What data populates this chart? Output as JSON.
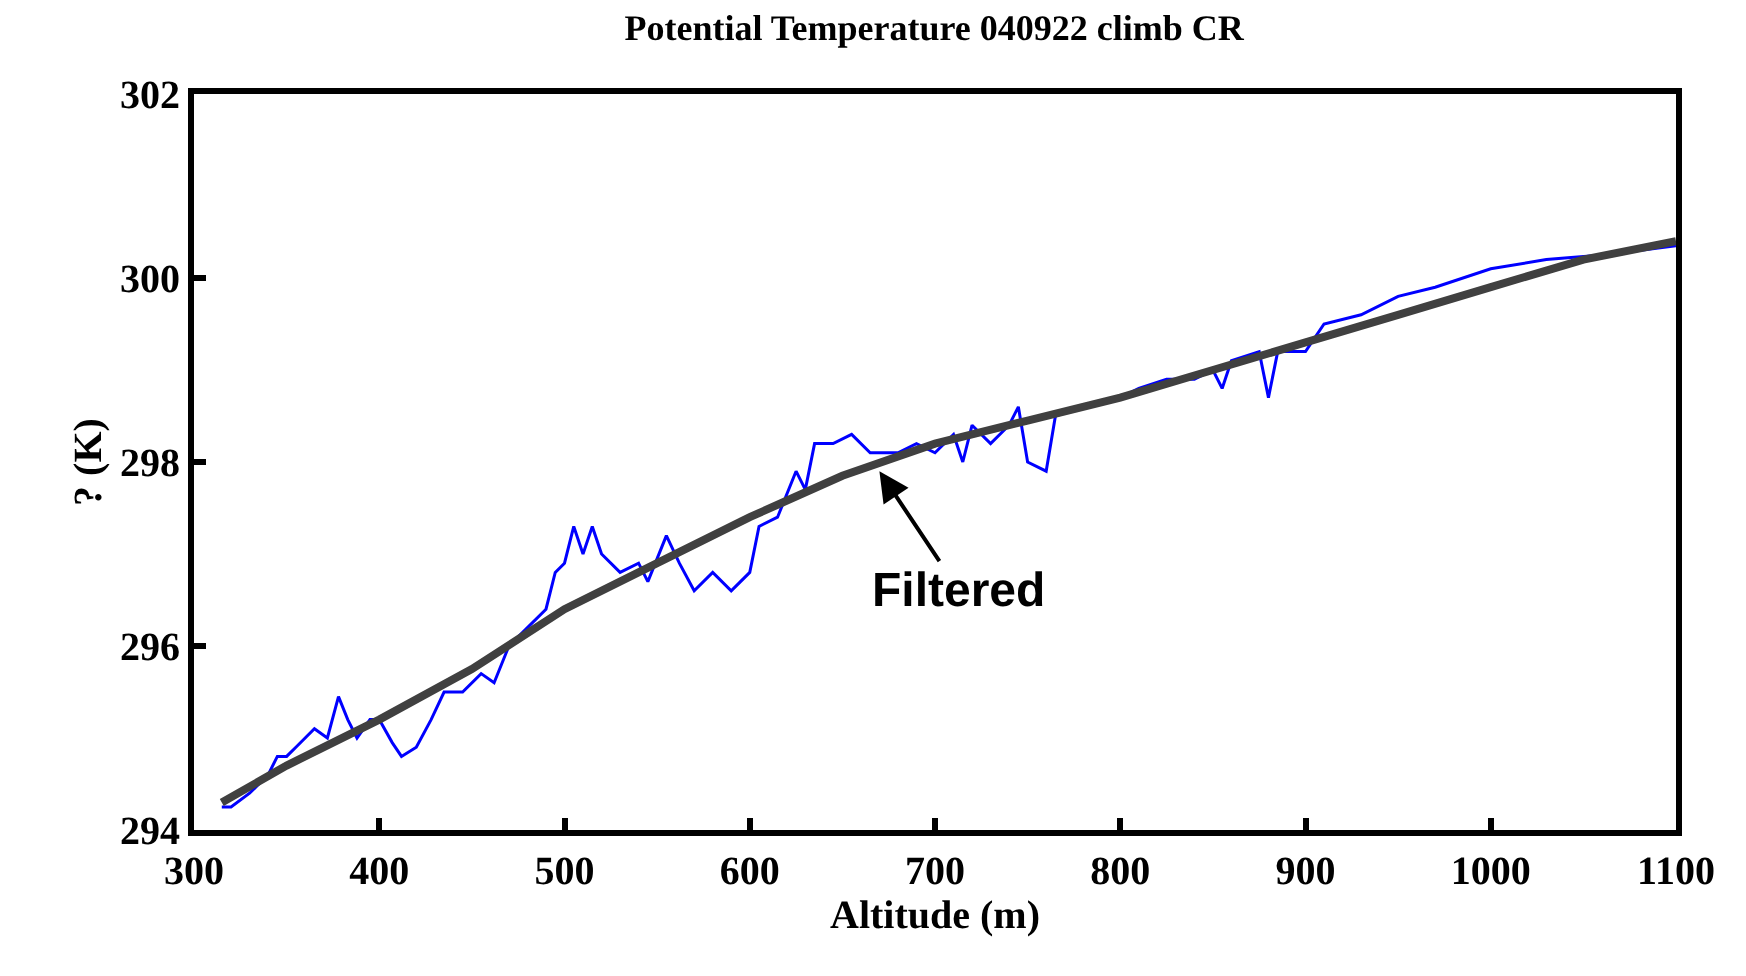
{
  "chart_data": {
    "type": "line",
    "title": "Potential Temperature 040922 climb CR",
    "xlabel": "Altitude (m)",
    "ylabel": "? (K)",
    "xlim": [
      300,
      1100
    ],
    "xticks": [
      300,
      400,
      500,
      600,
      700,
      800,
      900,
      1000,
      1100
    ],
    "ylim": [
      294,
      302
    ],
    "yticks": [
      294,
      296,
      298,
      300,
      302
    ],
    "marker": "none",
    "line_style": "solid",
    "series": [
      {
        "color": "#0000ff",
        "x": [
          315,
          320,
          330,
          340,
          345,
          350,
          355,
          360,
          365,
          372,
          378,
          383,
          388,
          395,
          400,
          407,
          412,
          420,
          428,
          435,
          445,
          455,
          462,
          470,
          480,
          490,
          495,
          500,
          505,
          510,
          515,
          520,
          530,
          540,
          545,
          555,
          562,
          570,
          580,
          590,
          600,
          605,
          615,
          625,
          630,
          635,
          645,
          655,
          665,
          680,
          690,
          700,
          710,
          715,
          720,
          730,
          740,
          745,
          750,
          760,
          765,
          780,
          800,
          810,
          825,
          840,
          850,
          855,
          860,
          875,
          880,
          885,
          900,
          910,
          930,
          950,
          970,
          1000,
          1030,
          1060,
          1080,
          1100
        ],
        "values": [
          294.25,
          294.25,
          294.4,
          294.6,
          294.8,
          294.8,
          294.9,
          295.0,
          295.1,
          295.0,
          295.45,
          295.2,
          295.0,
          295.2,
          295.2,
          294.95,
          294.8,
          294.9,
          295.2,
          295.5,
          295.5,
          295.7,
          295.6,
          296.0,
          296.2,
          296.4,
          296.8,
          296.9,
          297.3,
          297.0,
          297.3,
          297.0,
          296.8,
          296.9,
          296.7,
          297.2,
          296.9,
          296.6,
          296.8,
          296.6,
          296.8,
          297.3,
          297.4,
          297.9,
          297.7,
          298.2,
          298.2,
          298.3,
          298.1,
          298.1,
          298.2,
          298.1,
          298.3,
          298.0,
          298.4,
          298.2,
          298.4,
          298.6,
          298.0,
          297.9,
          298.5,
          298.6,
          298.7,
          298.8,
          298.9,
          298.9,
          299.0,
          298.8,
          299.1,
          299.2,
          298.7,
          299.2,
          299.2,
          299.5,
          299.6,
          299.8,
          299.9,
          300.1,
          300.2,
          300.25,
          300.3,
          300.35
        ]
      },
      {
        "color": "#404040",
        "x": [
          315,
          350,
          400,
          450,
          500,
          550,
          600,
          650,
          700,
          750,
          800,
          850,
          900,
          950,
          1000,
          1050,
          1100
        ],
        "values": [
          294.3,
          294.7,
          295.2,
          295.75,
          296.4,
          296.9,
          297.4,
          297.85,
          298.2,
          298.45,
          298.7,
          299.0,
          299.3,
          299.6,
          299.9,
          300.2,
          300.4
        ]
      }
    ],
    "annotations": [
      {
        "text": "Filtered",
        "x": 670,
        "y": 297.9
      }
    ]
  }
}
